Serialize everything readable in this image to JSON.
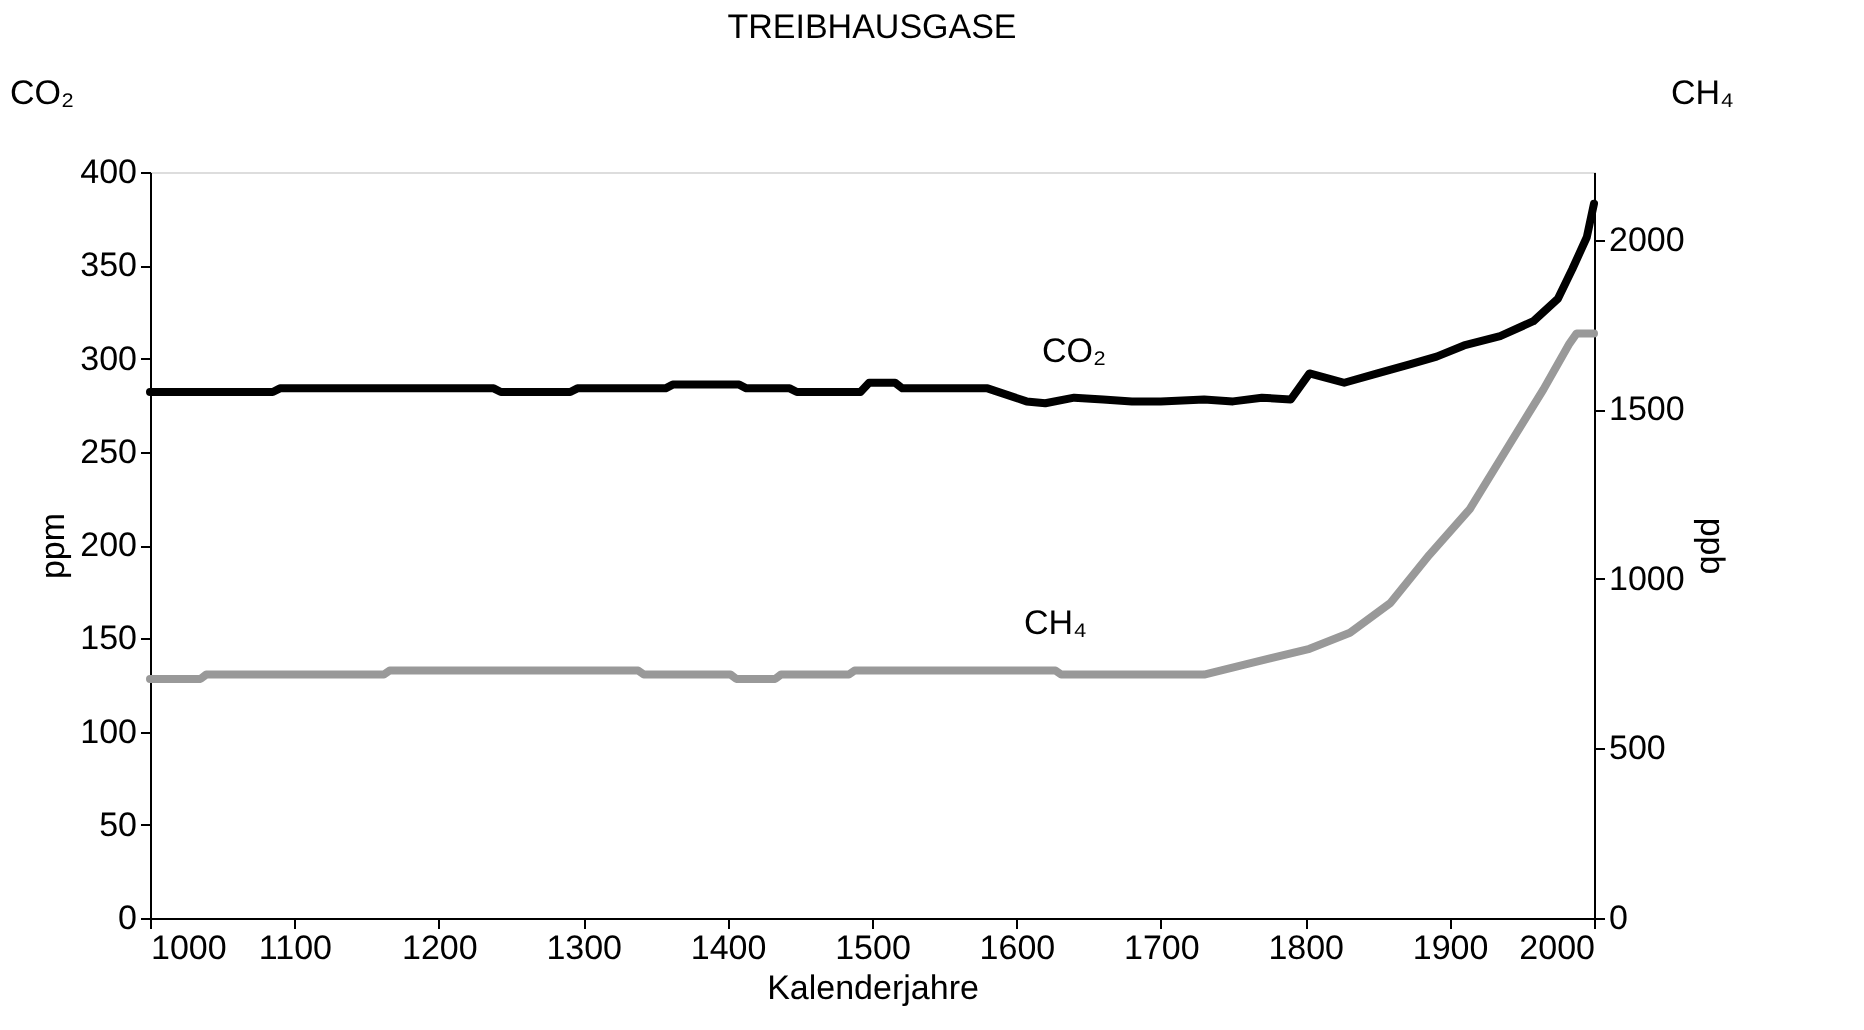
{
  "chart_data": {
    "type": "line",
    "title": "TREIBHAUSGASE",
    "xlabel": "Kalenderjahre",
    "ylabel": "ppm",
    "y2label": "ppb",
    "xlim": [
      1000,
      2000
    ],
    "xticks": [
      1000,
      1100,
      1200,
      1300,
      1400,
      1500,
      1600,
      1700,
      1800,
      1900,
      2000
    ],
    "ylim": [
      0,
      400
    ],
    "yticks": [
      0,
      50,
      100,
      150,
      200,
      250,
      300,
      350,
      400
    ],
    "y2lim": [
      0,
      2200
    ],
    "y2ticks": [
      0,
      500,
      1000,
      1500,
      2000
    ],
    "grid": false,
    "marker": "none",
    "line_style": "solid",
    "annotations": [
      "CO₂",
      "CH₄"
    ],
    "series": [
      {
        "name": "CO₂",
        "color": "#000000",
        "x": [
          1000,
          1085,
          1090,
          1238,
          1243,
          1291,
          1296,
          1357,
          1362,
          1408,
          1413,
          1443,
          1448,
          1492,
          1498,
          1516,
          1521,
          1580,
          1607,
          1620,
          1640,
          1660,
          1680,
          1700,
          1730,
          1750,
          1770,
          1790,
          1803,
          1827,
          1850,
          1873,
          1891,
          1910,
          1935,
          1958,
          1975,
          1985,
          1995,
          2000
        ],
        "values": [
          282,
          282,
          284,
          284,
          282,
          282,
          284,
          284,
          286,
          286,
          284,
          284,
          282,
          282,
          287,
          287,
          284,
          284,
          277,
          276,
          279,
          278,
          277,
          277,
          278,
          277,
          279,
          278,
          292,
          287,
          292,
          297,
          301,
          307,
          312,
          320,
          332,
          348,
          365,
          383
        ]
      },
      {
        "name": "CH₄",
        "color": "#999999",
        "axis": "y2",
        "x": [
          1000,
          1035,
          1039,
          1162,
          1166,
          1338,
          1342,
          1402,
          1406,
          1433,
          1437,
          1484,
          1488,
          1627,
          1631,
          1730,
          1758,
          1803,
          1831,
          1859,
          1886,
          1914,
          1942,
          1965,
          1983,
          1988,
          2000
        ],
        "values": [
          705,
          705,
          718,
          718,
          730,
          730,
          718,
          718,
          705,
          705,
          718,
          718,
          730,
          730,
          718,
          718,
          747,
          794,
          841,
          929,
          1071,
          1206,
          1400,
          1559,
          1694,
          1724,
          1724
        ]
      }
    ]
  }
}
